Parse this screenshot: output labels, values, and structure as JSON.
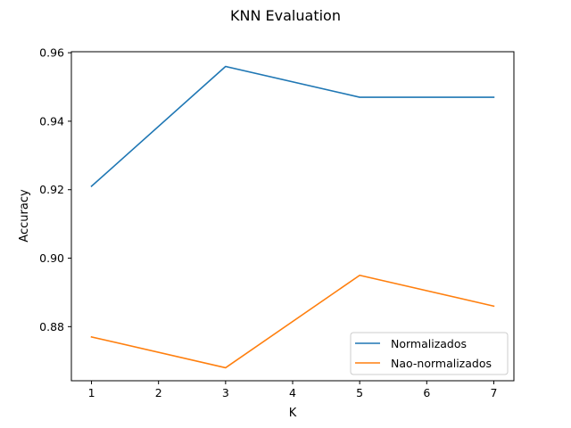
{
  "chart_data": {
    "type": "line",
    "title": "KNN Evaluation",
    "xlabel": "K",
    "ylabel": "Accuracy",
    "x": [
      1,
      3,
      5,
      7
    ],
    "xlim": [
      0.7,
      7.3
    ],
    "ylim": [
      0.8642,
      0.9603
    ],
    "xticks": [
      "1",
      "2",
      "3",
      "4",
      "5",
      "6",
      "7"
    ],
    "yticks": [
      "0.88",
      "0.90",
      "0.92",
      "0.94",
      "0.96"
    ],
    "grid": false,
    "legend_position": "lower-right",
    "series": [
      {
        "name": "Normalizados",
        "color": "#1f77b4",
        "values": [
          0.921,
          0.956,
          0.947,
          0.947
        ]
      },
      {
        "name": "Nao-normalizados",
        "color": "#ff7f0e",
        "values": [
          0.877,
          0.868,
          0.895,
          0.886
        ]
      }
    ]
  }
}
